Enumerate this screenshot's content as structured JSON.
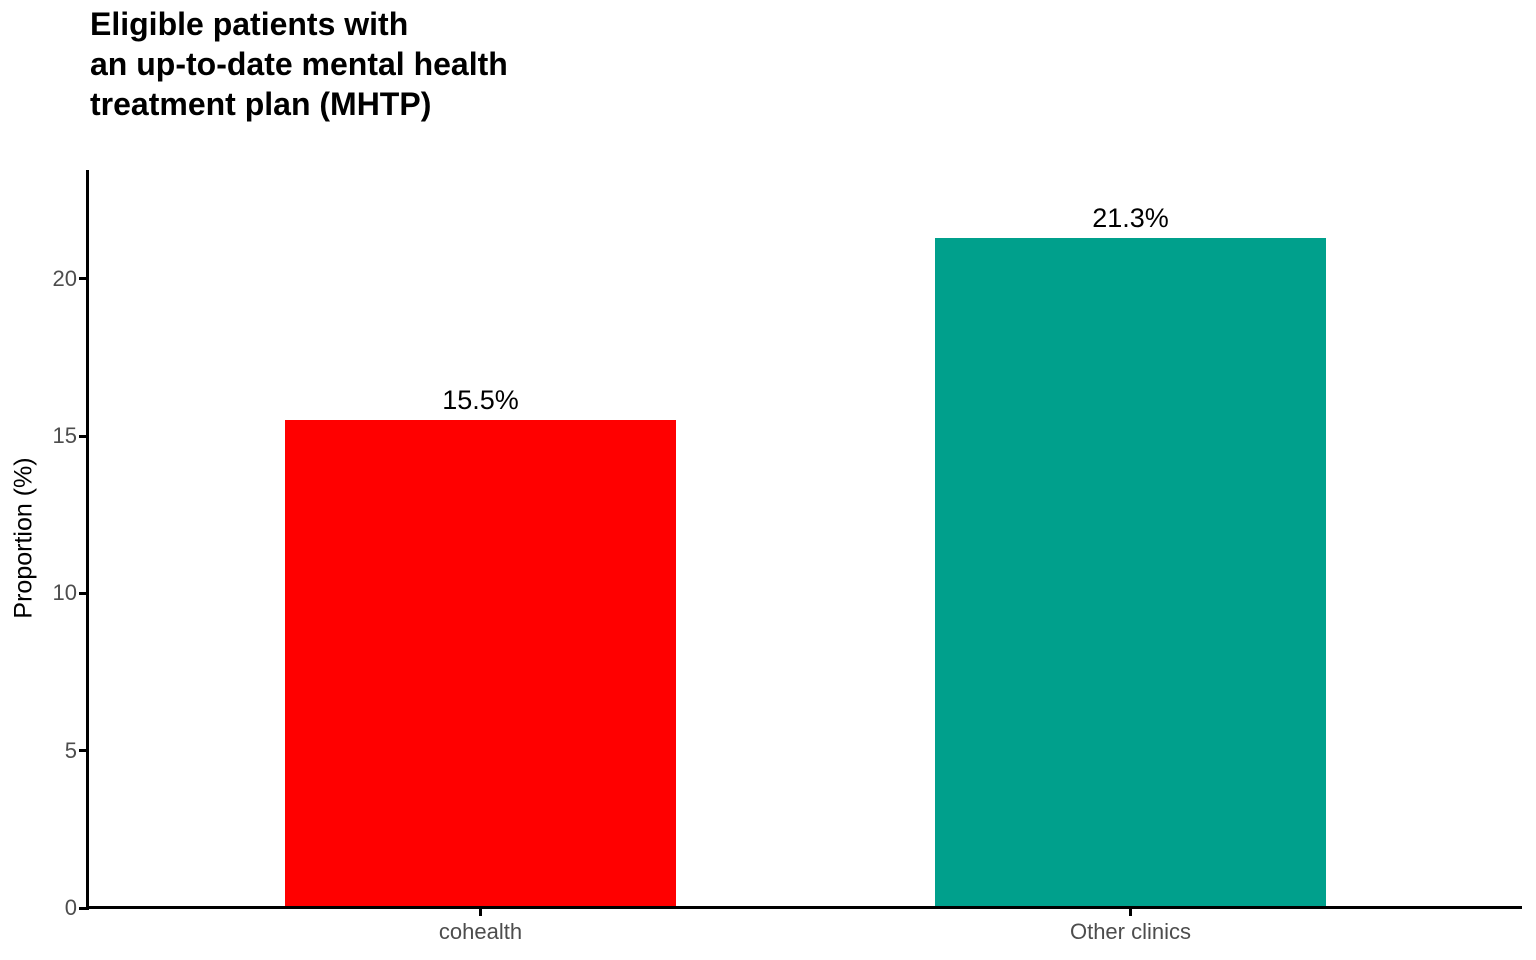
{
  "chart_data": {
    "type": "bar",
    "title": "Eligible patients with\nan up-to-date mental health\ntreatment plan (MHTP)",
    "title_lines": [
      "Eligible patients with",
      "an up-to-date mental health",
      "treatment plan (MHTP)"
    ],
    "xlabel": "",
    "ylabel": "Proportion (%)",
    "categories": [
      "cohealth",
      "Other clinics"
    ],
    "values": [
      15.5,
      21.3
    ],
    "value_labels": [
      "15.5%",
      "21.3%"
    ],
    "bar_colors": [
      "#FF0000",
      "#00A08C"
    ],
    "yticks": [
      0,
      5,
      10,
      15,
      20
    ],
    "ytick_labels": [
      "0",
      "5",
      "10",
      "15",
      "20"
    ],
    "ylim": [
      0,
      23.5
    ],
    "grid": false,
    "legend": "none",
    "colors": {
      "background": "#FFFFFF",
      "title_text": "#000000",
      "axis_line": "#000000",
      "axis_tick_text": "#4D4D4D",
      "axis_title_text": "#000000",
      "value_label_text": "#000000"
    }
  }
}
